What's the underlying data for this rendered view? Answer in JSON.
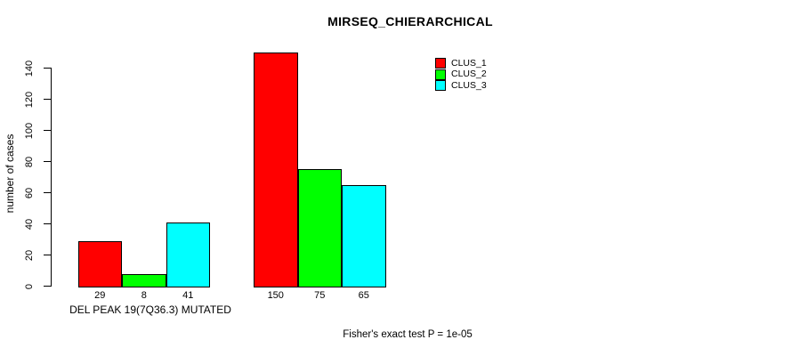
{
  "chart_data": {
    "type": "bar",
    "title": "MIRSEQ_CHIERARCHICAL",
    "ylabel": "number of cases",
    "xlabel": "",
    "ylim": [
      0,
      150
    ],
    "yticks": [
      0,
      20,
      40,
      60,
      80,
      100,
      120,
      140
    ],
    "grid": false,
    "legend_position": "top-right",
    "series": [
      {
        "name": "CLUS_1",
        "color": "#ff0000"
      },
      {
        "name": "CLUS_2",
        "color": "#00ff00"
      },
      {
        "name": "CLUS_3",
        "color": "#00ffff"
      }
    ],
    "groups": [
      {
        "label": "DEL PEAK 19(7Q36.3) MUTATED",
        "values": [
          29,
          8,
          41
        ]
      },
      {
        "label": "",
        "values": [
          150,
          75,
          65
        ]
      }
    ],
    "bar_value_labels": [
      [
        29,
        8,
        41
      ],
      [
        150,
        75,
        65
      ]
    ],
    "annotation": "Fisher's exact test P = 1e-05",
    "colors": {
      "text": "#000000",
      "axis": "#000000",
      "background": "#ffffff"
    }
  }
}
